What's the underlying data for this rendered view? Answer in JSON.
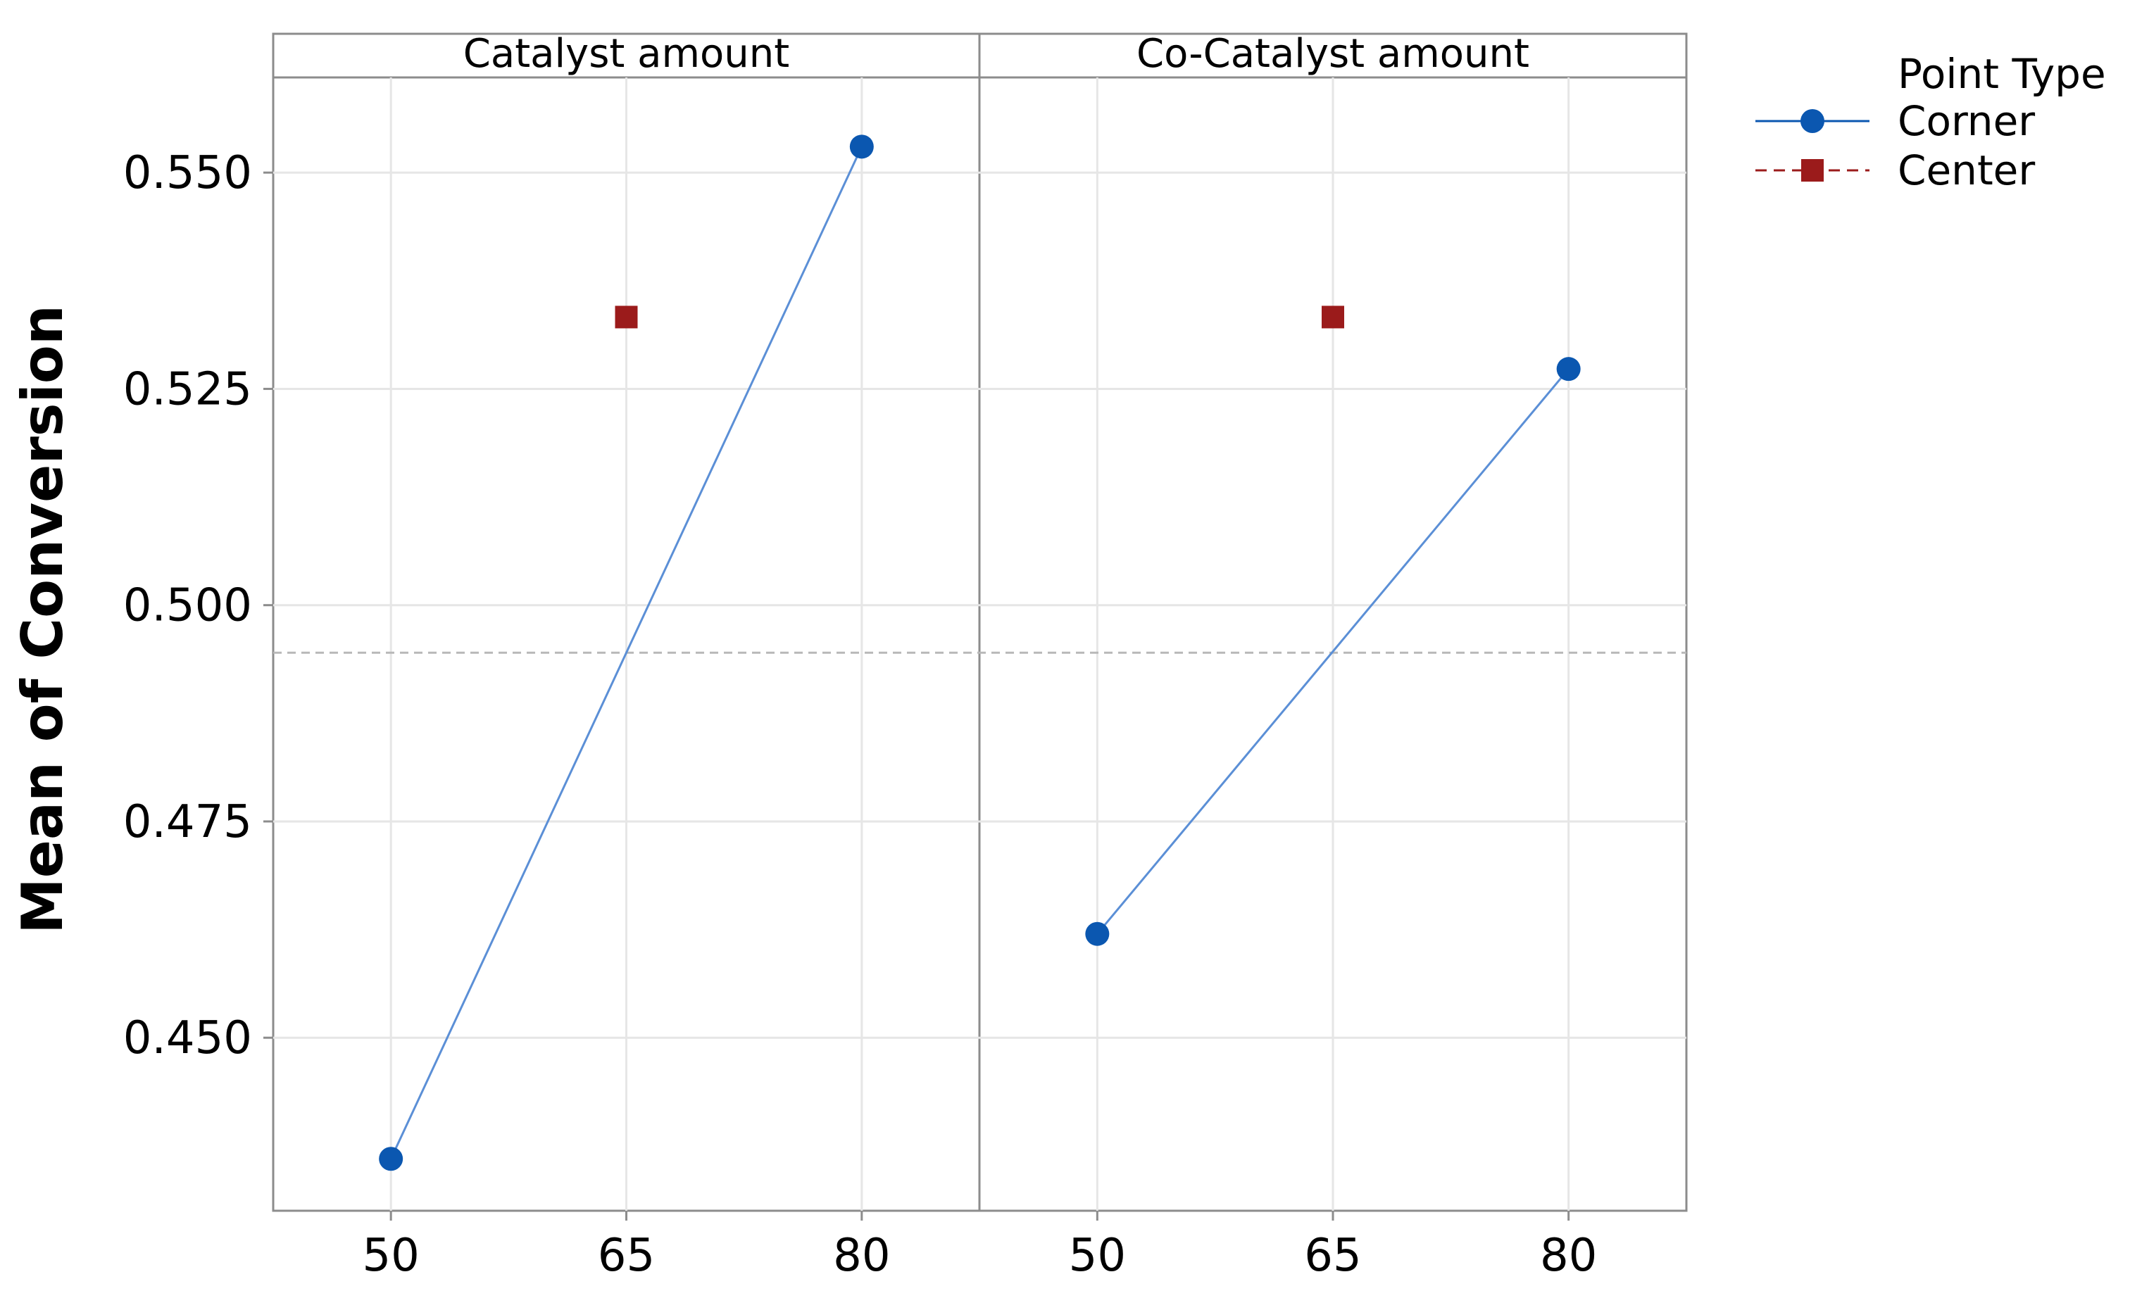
{
  "chart_data": {
    "type": "line",
    "title": "",
    "ylabel": "Mean of Conversion",
    "ylim": [
      0.43,
      0.561
    ],
    "y_ticks": [
      "0.450",
      "0.475",
      "0.500",
      "0.525",
      "0.550"
    ],
    "y_tick_values": [
      0.45,
      0.475,
      0.5,
      0.525,
      0.55
    ],
    "overall_mean": 0.4945,
    "x_ticks": [
      "50",
      "65",
      "80"
    ],
    "x_tick_values": [
      50,
      65,
      80
    ],
    "xlim": [
      42.5,
      87.5
    ],
    "panels": [
      {
        "name": "Catalyst amount",
        "corner": {
          "x": [
            50,
            80
          ],
          "y": [
            0.436,
            0.553
          ]
        },
        "center": {
          "x": 65,
          "y": 0.5333
        }
      },
      {
        "name": "Co-Catalyst amount",
        "corner": {
          "x": [
            50,
            80
          ],
          "y": [
            0.462,
            0.5273
          ]
        },
        "center": {
          "x": 65,
          "y": 0.5333
        }
      }
    ],
    "legend": {
      "title": "Point Type",
      "position": "top-right",
      "entries": [
        {
          "label": "Corner",
          "color": "#0b57b0",
          "marker": "circle",
          "line": "solid"
        },
        {
          "label": "Center",
          "color": "#9b1b1b",
          "marker": "square",
          "line": "dashed"
        }
      ]
    },
    "colors": {
      "corner_line": "#5b8fd6",
      "corner_marker": "#0b57b0",
      "center_marker": "#9b1b1b",
      "grid": "#e6e6e6",
      "mean_line": "#b8b8b8",
      "frame": "#8c8c8c"
    }
  }
}
